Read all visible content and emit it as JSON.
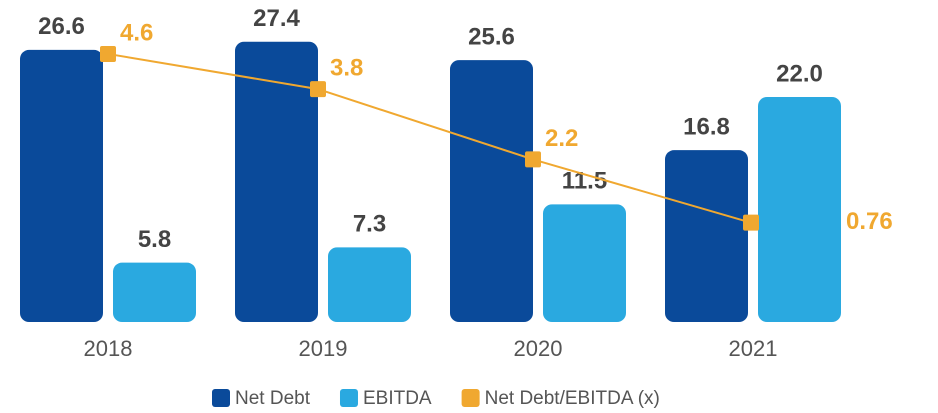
{
  "chart_data": {
    "type": "bar-line",
    "categories": [
      "2018",
      "2019",
      "2020",
      "2021"
    ],
    "series": [
      {
        "name": "Net Debt",
        "type": "bar",
        "color": "#0a4a9a",
        "values": [
          26.6,
          27.4,
          25.6,
          16.8
        ]
      },
      {
        "name": "EBITDA",
        "type": "bar",
        "color": "#2aa9e0",
        "values": [
          5.8,
          7.3,
          11.5,
          22.0
        ],
        "value_labels": [
          "5.8",
          "7.3",
          "11.5",
          "22.0"
        ]
      },
      {
        "name": "Net Debt/EBITDA (x)",
        "type": "line",
        "axis": "y2",
        "color": "#f0a830",
        "values": [
          4.6,
          3.8,
          2.2,
          0.76
        ]
      }
    ],
    "ylim": [
      0,
      30.5
    ],
    "y2lim": [
      -1.5,
      5.6
    ]
  }
}
